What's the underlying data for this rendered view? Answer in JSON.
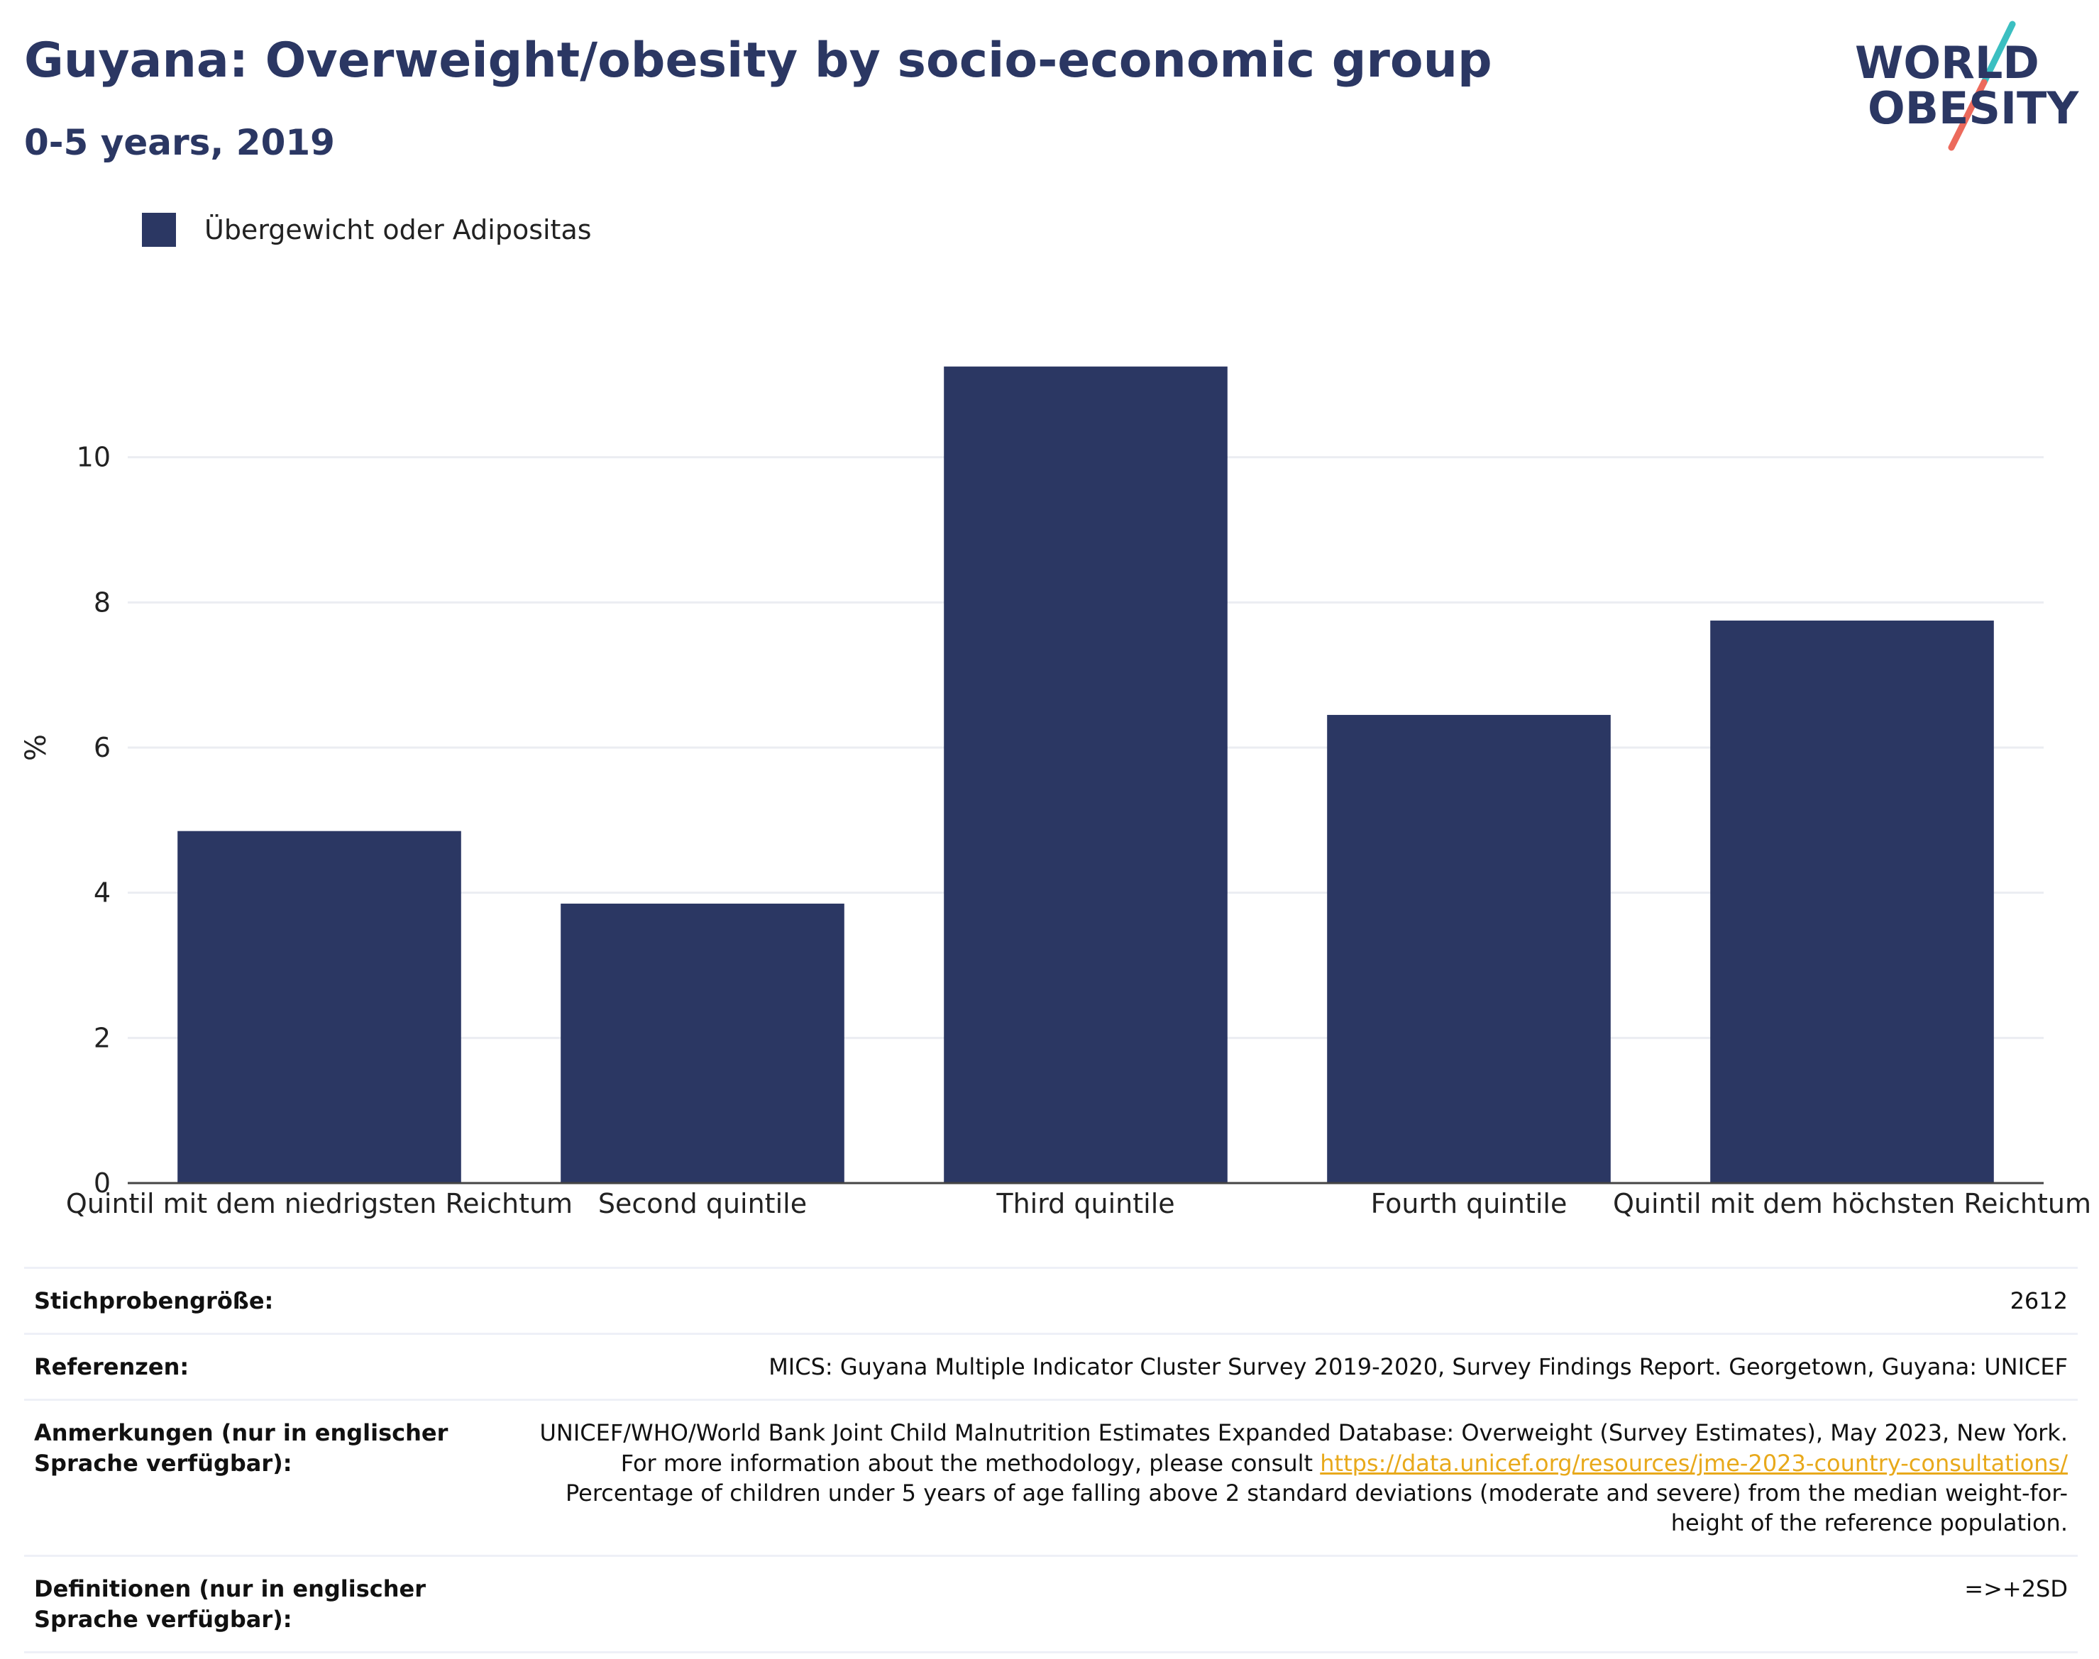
{
  "header": {
    "title": "Guyana: Overweight/obesity by socio-economic group",
    "subtitle": "0-5 years, 2019"
  },
  "logo": {
    "line1": "WORLD",
    "line2": "OBESITY",
    "slash_colors": [
      "#3bbfc1",
      "#ec6a5c"
    ]
  },
  "legend": {
    "label": "Übergewicht oder Adipositas",
    "color": "#2b3763"
  },
  "chart_data": {
    "type": "bar",
    "title": "Guyana: Overweight/obesity by socio-economic group",
    "subtitle": "0-5 years, 2019",
    "xlabel": "",
    "ylabel": "%",
    "categories": [
      "Quintil mit dem niedrigsten Reichtum",
      "Second quintile",
      "Third quintile",
      "Fourth quintile",
      "Quintil mit dem höchsten Reichtum"
    ],
    "series": [
      {
        "name": "Übergewicht oder Adipositas",
        "values": [
          4.85,
          3.85,
          11.25,
          6.45,
          7.75
        ]
      }
    ],
    "yticks": [
      0,
      2,
      4,
      6,
      8,
      10
    ],
    "ylim": [
      0,
      12
    ],
    "grid": true,
    "legend_position": "top-left",
    "bar_color": "#2b3763",
    "grid_color": "#ebedf2",
    "axis_color": "#444444"
  },
  "info": {
    "sample_size_label": "Stichprobengröße:",
    "sample_size_value": "2612",
    "references_label": "Referenzen:",
    "references_value": "MICS: Guyana Multiple Indicator Cluster Survey 2019-2020, Survey Findings Report. Georgetown, Guyana: UNICEF",
    "notes_label": "Anmerkungen (nur in englischer Sprache verfügbar):",
    "notes_text_1": "UNICEF/WHO/World Bank Joint Child Malnutrition Estimates Expanded Database: Overweight (Survey Estimates), May 2023, New York. For more information about the methodology, please consult ",
    "notes_link": "https://data.unicef.org/resources/jme-2023-country-consultations/",
    "notes_text_2": "Percentage of children under 5 years of age falling above 2 standard deviations (moderate and severe) from the median weight-for-height of the reference population.",
    "definitions_label": "Definitionen (nur in englischer Sprache verfügbar):",
    "definitions_value": "=>+2SD"
  }
}
